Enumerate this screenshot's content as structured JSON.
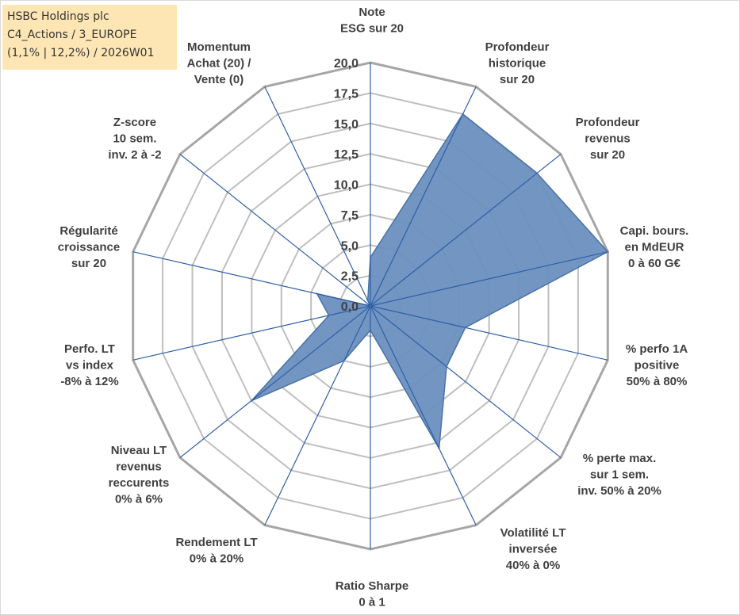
{
  "info_box": {
    "company": "HSBC Holdings plc",
    "category": "C4_Actions / 3_EUROPE",
    "period": "(1,1% | 12,2%) / 2026W01"
  },
  "chart_data": {
    "type": "radar",
    "title": "",
    "r_min": 0,
    "r_max": 20,
    "r_step": 2.5,
    "tick_labels": [
      "0,0",
      "2,5",
      "5,0",
      "7,5",
      "10,0",
      "12,5",
      "15,0",
      "17,5",
      "20,0"
    ],
    "categories": [
      [
        "Note",
        "ESG sur 20"
      ],
      [
        "Profondeur",
        "historique",
        "sur 20"
      ],
      [
        "Profondeur",
        "revenus",
        "sur 20"
      ],
      [
        "Capi. bours.",
        "en MdEUR",
        "0 à 60 G€"
      ],
      [
        "% perfo 1A",
        "positive",
        "50% à 80%"
      ],
      [
        "% perte max.",
        "sur 1 sem.",
        "inv. 50% à 20%"
      ],
      [
        "Volatilité LT",
        "inversée",
        "40% à 0%"
      ],
      [
        "Ratio Sharpe",
        "0 à 1"
      ],
      [
        "Rendement LT",
        "0% à 20%"
      ],
      [
        "Niveau LT",
        "revenus",
        "reccurents",
        "0% à 6%"
      ],
      [
        "Perfo. LT",
        "vs index",
        "-8% à 12%"
      ],
      [
        "Régularité",
        "croissance",
        "sur 20"
      ],
      [
        "Z-score",
        "10 sem.",
        "inv. 2 à -2"
      ],
      [
        "Momentum",
        "Achat (20) /",
        "Vente (0)"
      ]
    ],
    "series": [
      {
        "name": "HSBC Holdings plc",
        "values": [
          4.0,
          17.5,
          17.5,
          20.0,
          8.0,
          8.0,
          13.0,
          2.0,
          5.0,
          12.5,
          3.5,
          4.5,
          0.0,
          0.5
        ]
      }
    ],
    "colors": {
      "fill": "#6a8fbe",
      "stroke": "#4a72a8",
      "axis": "#2f5fa7",
      "grid": "#bfbfbf",
      "outer_grid": "#a6a6a6",
      "text": "#404040"
    }
  }
}
